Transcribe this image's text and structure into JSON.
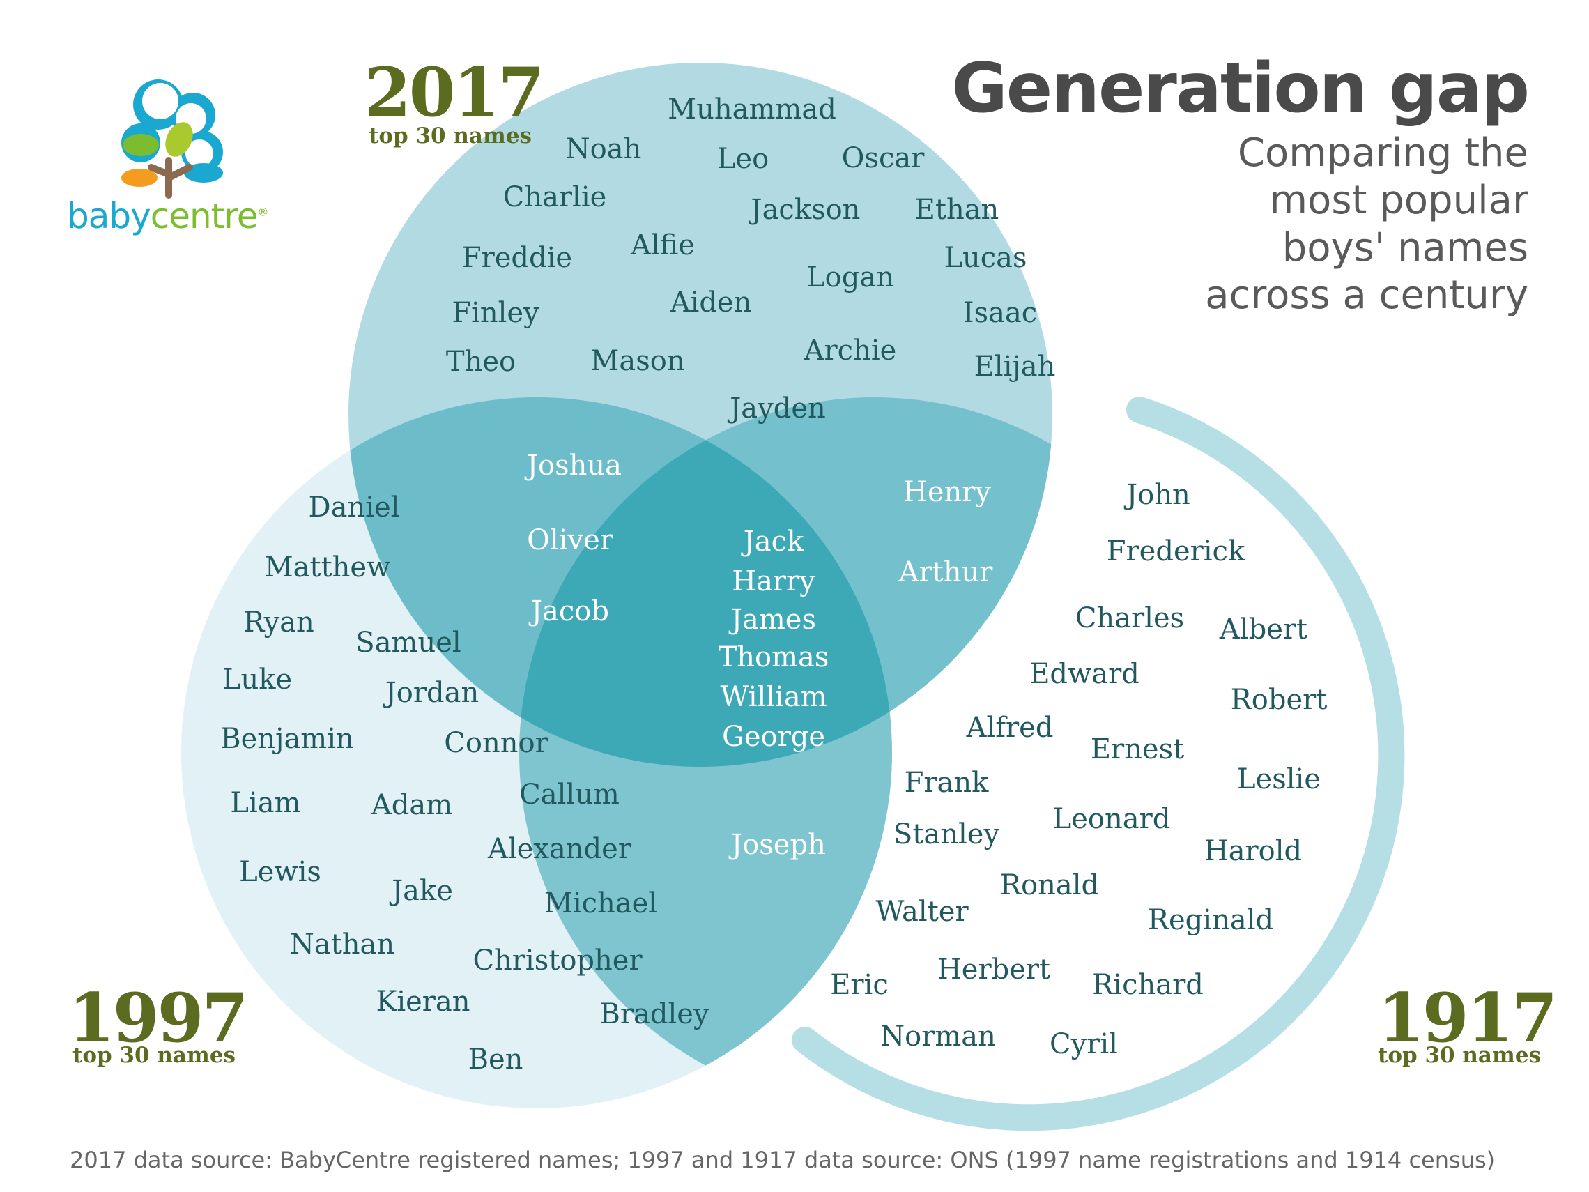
{
  "title": "Generation gap",
  "subtitle": [
    "Comparing the",
    "most popular",
    "boys' names",
    "across a century"
  ],
  "brand": {
    "part1": "baby",
    "part2": "centre",
    "registered": "®"
  },
  "sets": {
    "s2017": {
      "year": "2017",
      "label": "top 30 names"
    },
    "s1997": {
      "year": "1997",
      "label": "top 30 names"
    },
    "s1917": {
      "year": "1917",
      "label": "top 30 names"
    }
  },
  "regions": {
    "only_2017": [
      "Muhammad",
      "Noah",
      "Leo",
      "Oscar",
      "Charlie",
      "Jackson",
      "Ethan",
      "Freddie",
      "Alfie",
      "Lucas",
      "Logan",
      "Finley",
      "Aiden",
      "Isaac",
      "Theo",
      "Mason",
      "Archie",
      "Elijah",
      "Jayden"
    ],
    "only_2017_1997": [
      "Joshua",
      "Oliver",
      "Jacob"
    ],
    "only_2017_1917": [
      "Henry",
      "Arthur"
    ],
    "all_three": [
      "Jack",
      "Harry",
      "James",
      "Thomas",
      "William",
      "George"
    ],
    "only_1997_1917": [
      "Joseph"
    ],
    "only_1997": [
      "Daniel",
      "Matthew",
      "Ryan",
      "Samuel",
      "Luke",
      "Jordan",
      "Benjamin",
      "Connor",
      "Liam",
      "Adam",
      "Callum",
      "Alexander",
      "Lewis",
      "Jake",
      "Michael",
      "Nathan",
      "Christopher",
      "Kieran",
      "Bradley",
      "Ben"
    ],
    "only_1917": [
      "John",
      "Frederick",
      "Charles",
      "Albert",
      "Edward",
      "Robert",
      "Alfred",
      "Ernest",
      "Leslie",
      "Frank",
      "Leonard",
      "Stanley",
      "Harold",
      "Ronald",
      "Walter",
      "Reginald",
      "Herbert",
      "Eric",
      "Richard",
      "Norman",
      "Cyril"
    ]
  },
  "footnote": "2017 data source: BabyCentre registered names; 1997 and 1917 data source: ONS (1997 name registrations and 1914 census)",
  "colors": {
    "set2017": "#b1dae2",
    "set1997": "#e1f1f5",
    "set1917_ring": "#b6dfe5",
    "overlap_2017_1997": "#6cbcc9",
    "overlap_2017_1917": "#74c0cd",
    "overlap_1997_1917": "#7ec5d0",
    "overlap_all": "#3da8b6",
    "name_text": "#22595f",
    "year_text": "#5b6b1f",
    "title_text": "#4a4a4a"
  }
}
